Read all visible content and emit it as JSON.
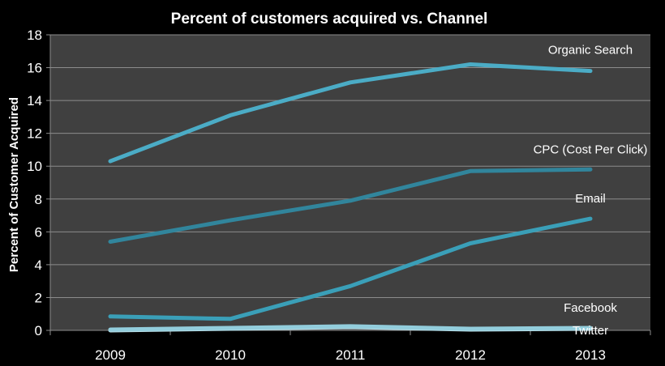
{
  "chart_data": {
    "type": "line",
    "title": "Percent of customers acquired vs. Channel",
    "xlabel": "",
    "ylabel": "Percent of Customer Acquired",
    "categories": [
      "2009",
      "2010",
      "2011",
      "2012",
      "2013"
    ],
    "ylim": [
      0,
      18
    ],
    "yticks": [
      0,
      2,
      4,
      6,
      8,
      10,
      12,
      14,
      16,
      18
    ],
    "grid": true,
    "legend": "inline labels at line ends",
    "plot_background": "#404040",
    "series": [
      {
        "name": "Organic Search",
        "values": [
          10.3,
          13.1,
          15.1,
          16.2,
          15.8
        ],
        "color": "#4bacc6"
      },
      {
        "name": "CPC (Cost Per Click)",
        "values": [
          5.4,
          6.7,
          7.9,
          9.7,
          9.8
        ],
        "color": "#31859c"
      },
      {
        "name": "Email",
        "values": [
          0.85,
          0.7,
          2.7,
          5.3,
          6.8
        ],
        "color": "#3a9fb8"
      },
      {
        "name": "Facebook",
        "values": [
          0.05,
          0.15,
          0.25,
          0.1,
          0.15
        ],
        "color": "#92cddc"
      },
      {
        "name": "Twitter",
        "values": [
          0.0,
          0.1,
          0.2,
          0.05,
          0.1
        ],
        "color": "#b7dee8"
      }
    ]
  }
}
